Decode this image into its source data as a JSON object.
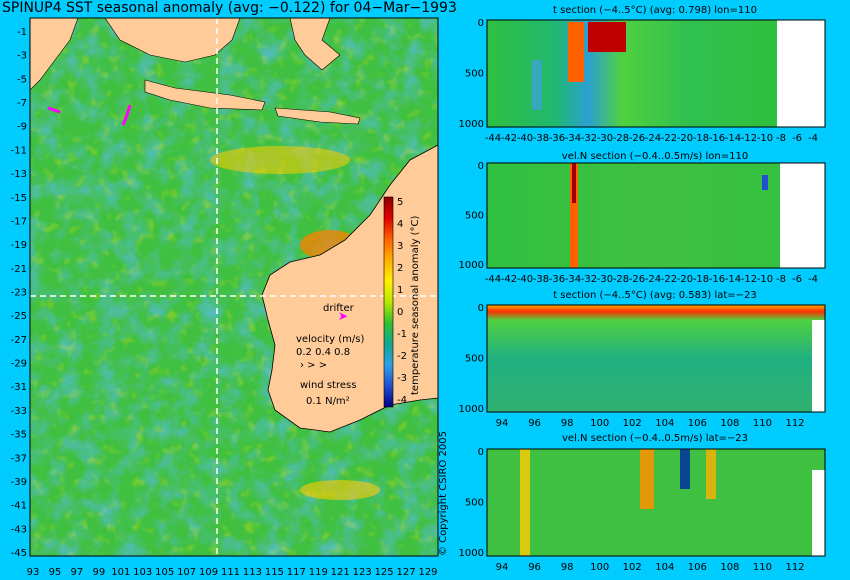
{
  "title": "SPINUP4 SST seasonal anomaly (avg: −0.122) for 04−Mar−1993",
  "map": {
    "lat_labels": [
      "-1",
      "-3",
      "-5",
      "-7",
      "-9",
      "-11",
      "-13",
      "-15",
      "-17",
      "-19",
      "-21",
      "-23",
      "-25",
      "-27",
      "-29",
      "-31",
      "-33",
      "-35",
      "-37",
      "-39",
      "-41",
      "-43",
      "-45"
    ],
    "lon_labels": [
      "93",
      "95",
      "97",
      "99",
      "101",
      "103",
      "105",
      "107",
      "109",
      "111",
      "113",
      "115",
      "117",
      "119",
      "121",
      "123",
      "125",
      "127",
      "129"
    ],
    "colorbar": {
      "label": "temperature seasonal anomaly (°C)",
      "ticks": [
        "5",
        "4",
        "3",
        "2",
        "1",
        "0",
        "-1",
        "-2",
        "-3",
        "-4"
      ],
      "colors": [
        "#8b0000",
        "#e00000",
        "#ff6000",
        "#ffb000",
        "#ffee00",
        "#b8e800",
        "#30c030",
        "#10a890",
        "#30a0e8",
        "#2050d0",
        "#000080"
      ]
    },
    "legend": {
      "drifter": "drifter",
      "velocity_title": "velocity (m/s)",
      "velocity_values": "0.2 0.4 0.8",
      "wind_title": "wind stress",
      "wind_value": "0.1 N/m²"
    },
    "colors": {
      "land": "#ffcc99",
      "ocean": "#40c040",
      "drifter": "#ff00ff",
      "crosshair": "#ffffff"
    }
  },
  "panels": [
    {
      "title": "t section (−4..5°C) (avg: 0.798) lon=110",
      "y_ticks": [
        "0",
        "500",
        "1000"
      ],
      "x_ticks": [
        "-44",
        "-42",
        "-40",
        "-38",
        "-36",
        "-34",
        "-32",
        "-30",
        "-28",
        "-26",
        "-24",
        "-22",
        "-20",
        "-18",
        "-16",
        "-14",
        "-12",
        "-10",
        "-8",
        "-6",
        "-4"
      ]
    },
    {
      "title": "vel.N section (−0.4..0.5m/s) lon=110",
      "y_ticks": [
        "0",
        "500",
        "1000"
      ],
      "x_ticks": [
        "-44",
        "-42",
        "-40",
        "-38",
        "-36",
        "-34",
        "-32",
        "-30",
        "-28",
        "-26",
        "-24",
        "-22",
        "-20",
        "-18",
        "-16",
        "-14",
        "-12",
        "-10",
        "-8",
        "-6",
        "-4"
      ]
    },
    {
      "title": "t section (−4..5°C) (avg: 0.583) lat=−23",
      "y_ticks": [
        "0",
        "500",
        "1000"
      ],
      "x_ticks": [
        "94",
        "96",
        "98",
        "100",
        "102",
        "104",
        "106",
        "108",
        "110",
        "112"
      ]
    },
    {
      "title": "vel.N section (−0.4..0.5m/s) lat=−23",
      "y_ticks": [
        "0",
        "500",
        "1000"
      ],
      "x_ticks": [
        "94",
        "96",
        "98",
        "100",
        "102",
        "104",
        "106",
        "108",
        "110",
        "112"
      ]
    }
  ],
  "copyright": "© Copyright CSIRO 2005"
}
